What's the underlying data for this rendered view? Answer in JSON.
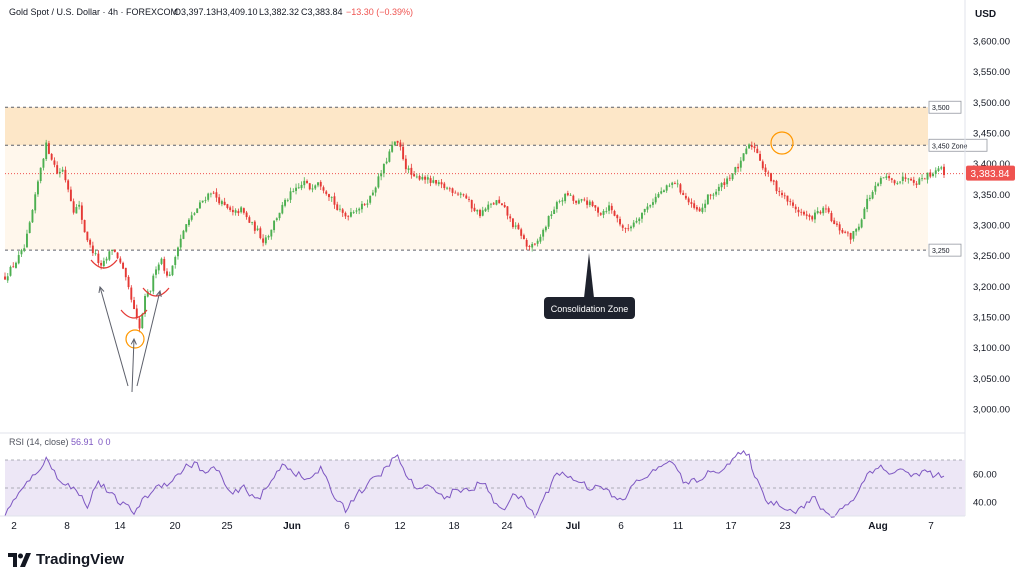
{
  "header": {
    "symbol": "Gold Spot / U.S. Dollar · 4h · FOREXCOM",
    "open": "O3,397.13",
    "high": "H3,409.10",
    "low": "L3,382.32",
    "close": "C3,383.84",
    "change": "−13.30 (−0.39%)"
  },
  "currency": "USD",
  "price_tag": "3,383.84",
  "levels": [
    {
      "label": "3,500",
      "value": 3492
    },
    {
      "label": "3,450 Zone",
      "value": 3430
    },
    {
      "label": "3,250",
      "value": 3259
    }
  ],
  "current_price_value": 3383.84,
  "annotation": "Consolidation Zone",
  "rsi_label": "RSI (14, close)",
  "rsi_value": "56.91",
  "rsi_extra": "0  0",
  "logo": "TradingView",
  "colors": {
    "up": "#26a69a",
    "down": "#ef5350",
    "candle_up": "#4caf50",
    "candle_down": "#e53935",
    "zone_strong": "#fde7c8",
    "zone_light": "#fff7ec",
    "rsi_line": "#7e57c2",
    "rsi_band": "#ede7f6",
    "price_line": "#ef5350",
    "annotation_bg": "#1e222d"
  },
  "chart_data": {
    "type": "candlestick",
    "y_ticks": [
      "3,600.00",
      "3,550.00",
      "3,500.00",
      "3,450.00",
      "3,400.00",
      "3,350.00",
      "3,300.00",
      "3,250.00",
      "3,200.00",
      "3,150.00",
      "3,100.00",
      "3,050.00",
      "3,000.00"
    ],
    "ylim": [
      2985,
      3630
    ],
    "rsi_ticks": [
      "60.00",
      "40.00"
    ],
    "rsi_ylim": [
      25,
      80
    ],
    "x_ticks": [
      "2",
      "8",
      "14",
      "20",
      "25",
      "Jun",
      "6",
      "12",
      "18",
      "24",
      "Jul",
      "6",
      "11",
      "17",
      "23",
      "Aug",
      "7"
    ],
    "close_path": [
      [
        0,
        3215
      ],
      [
        4,
        3240
      ],
      [
        7,
        3262
      ],
      [
        9,
        3300
      ],
      [
        11,
        3345
      ],
      [
        13,
        3395
      ],
      [
        15,
        3430
      ],
      [
        17,
        3410
      ],
      [
        19,
        3385
      ],
      [
        21,
        3390
      ],
      [
        23,
        3360
      ],
      [
        25,
        3325
      ],
      [
        27,
        3330
      ],
      [
        29,
        3290
      ],
      [
        31,
        3265
      ],
      [
        33,
        3250
      ],
      [
        35,
        3230
      ],
      [
        37,
        3245
      ],
      [
        39,
        3262
      ],
      [
        41,
        3248
      ],
      [
        43,
        3225
      ],
      [
        45,
        3195
      ],
      [
        47,
        3160
      ],
      [
        49,
        3130
      ],
      [
        51,
        3180
      ],
      [
        53,
        3195
      ],
      [
        55,
        3232
      ],
      [
        57,
        3245
      ],
      [
        59,
        3215
      ],
      [
        61,
        3230
      ],
      [
        63,
        3268
      ],
      [
        66,
        3300
      ],
      [
        69,
        3320
      ],
      [
        72,
        3340
      ],
      [
        75,
        3355
      ],
      [
        77,
        3345
      ],
      [
        80,
        3330
      ],
      [
        83,
        3318
      ],
      [
        86,
        3325
      ],
      [
        89,
        3305
      ],
      [
        92,
        3290
      ],
      [
        94,
        3275
      ],
      [
        96,
        3285
      ],
      [
        98,
        3305
      ],
      [
        101,
        3330
      ],
      [
        104,
        3350
      ],
      [
        107,
        3360
      ],
      [
        109,
        3370
      ],
      [
        111,
        3360
      ],
      [
        114,
        3373
      ],
      [
        117,
        3355
      ],
      [
        119,
        3345
      ],
      [
        121,
        3325
      ],
      [
        124,
        3315
      ],
      [
        127,
        3325
      ],
      [
        130,
        3330
      ],
      [
        133,
        3345
      ],
      [
        136,
        3375
      ],
      [
        138,
        3395
      ],
      [
        140,
        3418
      ],
      [
        142,
        3435
      ],
      [
        144,
        3425
      ],
      [
        146,
        3395
      ],
      [
        149,
        3375
      ],
      [
        152,
        3380
      ],
      [
        155,
        3370
      ],
      [
        158,
        3365
      ],
      [
        161,
        3360
      ],
      [
        164,
        3355
      ],
      [
        167,
        3350
      ],
      [
        170,
        3330
      ],
      [
        173,
        3318
      ],
      [
        176,
        3330
      ],
      [
        179,
        3338
      ],
      [
        182,
        3325
      ],
      [
        185,
        3300
      ],
      [
        188,
        3285
      ],
      [
        190,
        3265
      ],
      [
        193,
        3265
      ],
      [
        196,
        3290
      ],
      [
        199,
        3320
      ],
      [
        202,
        3340
      ],
      [
        205,
        3350
      ],
      [
        208,
        3335
      ],
      [
        211,
        3340
      ],
      [
        214,
        3330
      ],
      [
        217,
        3320
      ],
      [
        220,
        3330
      ],
      [
        223,
        3310
      ],
      [
        226,
        3290
      ],
      [
        229,
        3305
      ],
      [
        232,
        3320
      ],
      [
        235,
        3335
      ],
      [
        238,
        3350
      ],
      [
        241,
        3360
      ],
      [
        244,
        3370
      ],
      [
        247,
        3350
      ],
      [
        250,
        3330
      ],
      [
        253,
        3320
      ],
      [
        256,
        3345
      ],
      [
        259,
        3355
      ],
      [
        262,
        3370
      ],
      [
        265,
        3385
      ],
      [
        268,
        3400
      ],
      [
        270,
        3425
      ],
      [
        272,
        3430
      ],
      [
        274,
        3420
      ],
      [
        276,
        3395
      ],
      [
        278,
        3380
      ],
      [
        281,
        3360
      ],
      [
        284,
        3345
      ],
      [
        287,
        3330
      ],
      [
        290,
        3320
      ],
      [
        293,
        3310
      ],
      [
        296,
        3320
      ],
      [
        299,
        3325
      ],
      [
        302,
        3300
      ],
      [
        305,
        3290
      ],
      [
        308,
        3280
      ],
      [
        311,
        3300
      ],
      [
        314,
        3340
      ],
      [
        317,
        3360
      ],
      [
        320,
        3378
      ],
      [
        323,
        3372
      ],
      [
        326,
        3373
      ],
      [
        329,
        3380
      ],
      [
        332,
        3370
      ],
      [
        335,
        3380
      ],
      [
        338,
        3385
      ],
      [
        340,
        3396
      ],
      [
        342,
        3384
      ]
    ],
    "candle_count": 343,
    "rsi_path": [
      [
        0,
        32
      ],
      [
        6,
        48
      ],
      [
        12,
        63
      ],
      [
        15,
        70
      ],
      [
        20,
        56
      ],
      [
        26,
        48
      ],
      [
        30,
        38
      ],
      [
        34,
        55
      ],
      [
        38,
        46
      ],
      [
        43,
        38
      ],
      [
        47,
        33
      ],
      [
        52,
        45
      ],
      [
        56,
        52
      ],
      [
        61,
        55
      ],
      [
        65,
        64
      ],
      [
        69,
        68
      ],
      [
        73,
        60
      ],
      [
        77,
        65
      ],
      [
        82,
        45
      ],
      [
        87,
        50
      ],
      [
        92,
        42
      ],
      [
        96,
        51
      ],
      [
        101,
        68
      ],
      [
        105,
        62
      ],
      [
        110,
        55
      ],
      [
        115,
        64
      ],
      [
        119,
        47
      ],
      [
        124,
        35
      ],
      [
        128,
        45
      ],
      [
        133,
        54
      ],
      [
        137,
        60
      ],
      [
        140,
        68
      ],
      [
        143,
        72
      ],
      [
        147,
        56
      ],
      [
        151,
        48
      ],
      [
        156,
        52
      ],
      [
        160,
        42
      ],
      [
        165,
        50
      ],
      [
        169,
        47
      ],
      [
        174,
        55
      ],
      [
        178,
        40
      ],
      [
        182,
        36
      ],
      [
        186,
        46
      ],
      [
        190,
        38
      ],
      [
        193,
        30
      ],
      [
        197,
        45
      ],
      [
        201,
        62
      ],
      [
        205,
        58
      ],
      [
        209,
        55
      ],
      [
        213,
        50
      ],
      [
        217,
        53
      ],
      [
        221,
        44
      ],
      [
        225,
        40
      ],
      [
        229,
        53
      ],
      [
        233,
        58
      ],
      [
        237,
        62
      ],
      [
        241,
        70
      ],
      [
        245,
        63
      ],
      [
        248,
        52
      ],
      [
        252,
        56
      ],
      [
        256,
        60
      ],
      [
        260,
        63
      ],
      [
        264,
        68
      ],
      [
        268,
        75
      ],
      [
        271,
        72
      ],
      [
        274,
        54
      ],
      [
        278,
        40
      ],
      [
        283,
        38
      ],
      [
        287,
        33
      ],
      [
        291,
        37
      ],
      [
        295,
        43
      ],
      [
        298,
        33
      ],
      [
        302,
        30
      ],
      [
        306,
        38
      ],
      [
        310,
        44
      ],
      [
        314,
        60
      ],
      [
        318,
        66
      ],
      [
        322,
        60
      ],
      [
        326,
        64
      ],
      [
        330,
        58
      ],
      [
        334,
        62
      ],
      [
        338,
        60
      ],
      [
        342,
        57
      ]
    ]
  }
}
